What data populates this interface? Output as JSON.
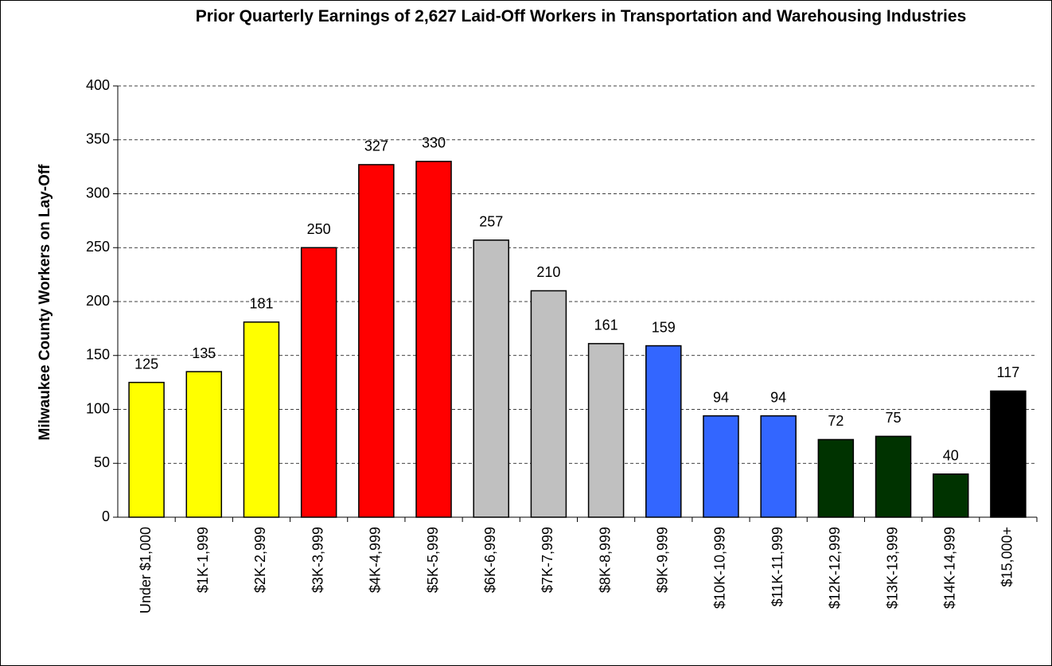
{
  "chart_data": {
    "type": "bar",
    "title": "Prior Quarterly Earnings of 2,627 Laid-Off Workers in Transportation and Warehousing Industries",
    "ylabel": "Milwaukee County Workers on Lay-Off",
    "categories": [
      "Under $1,000",
      "$1K-1,999",
      "$2K-2,999",
      "$3K-3,999",
      "$4K-4,999",
      "$5K-5,999",
      "$6K-6,999",
      "$7K-7,999",
      "$8K-8,999",
      "$9K-9,999",
      "$10K-10,999",
      "$11K-11,999",
      "$12K-12,999",
      "$13K-13,999",
      "$14K-14,999",
      "$15,000+"
    ],
    "values": [
      125,
      135,
      181,
      250,
      327,
      330,
      257,
      210,
      161,
      159,
      94,
      94,
      72,
      75,
      40,
      117
    ],
    "colors": [
      "#ffff00",
      "#ffff00",
      "#ffff00",
      "#ff0000",
      "#ff0000",
      "#ff0000",
      "#c0c0c0",
      "#c0c0c0",
      "#c0c0c0",
      "#3366ff",
      "#3366ff",
      "#3366ff",
      "#003300",
      "#003300",
      "#003300",
      "#000000"
    ],
    "ylim": [
      0,
      400
    ],
    "yticks": [
      0,
      50,
      100,
      150,
      200,
      250,
      300,
      350,
      400
    ],
    "grid": true
  }
}
